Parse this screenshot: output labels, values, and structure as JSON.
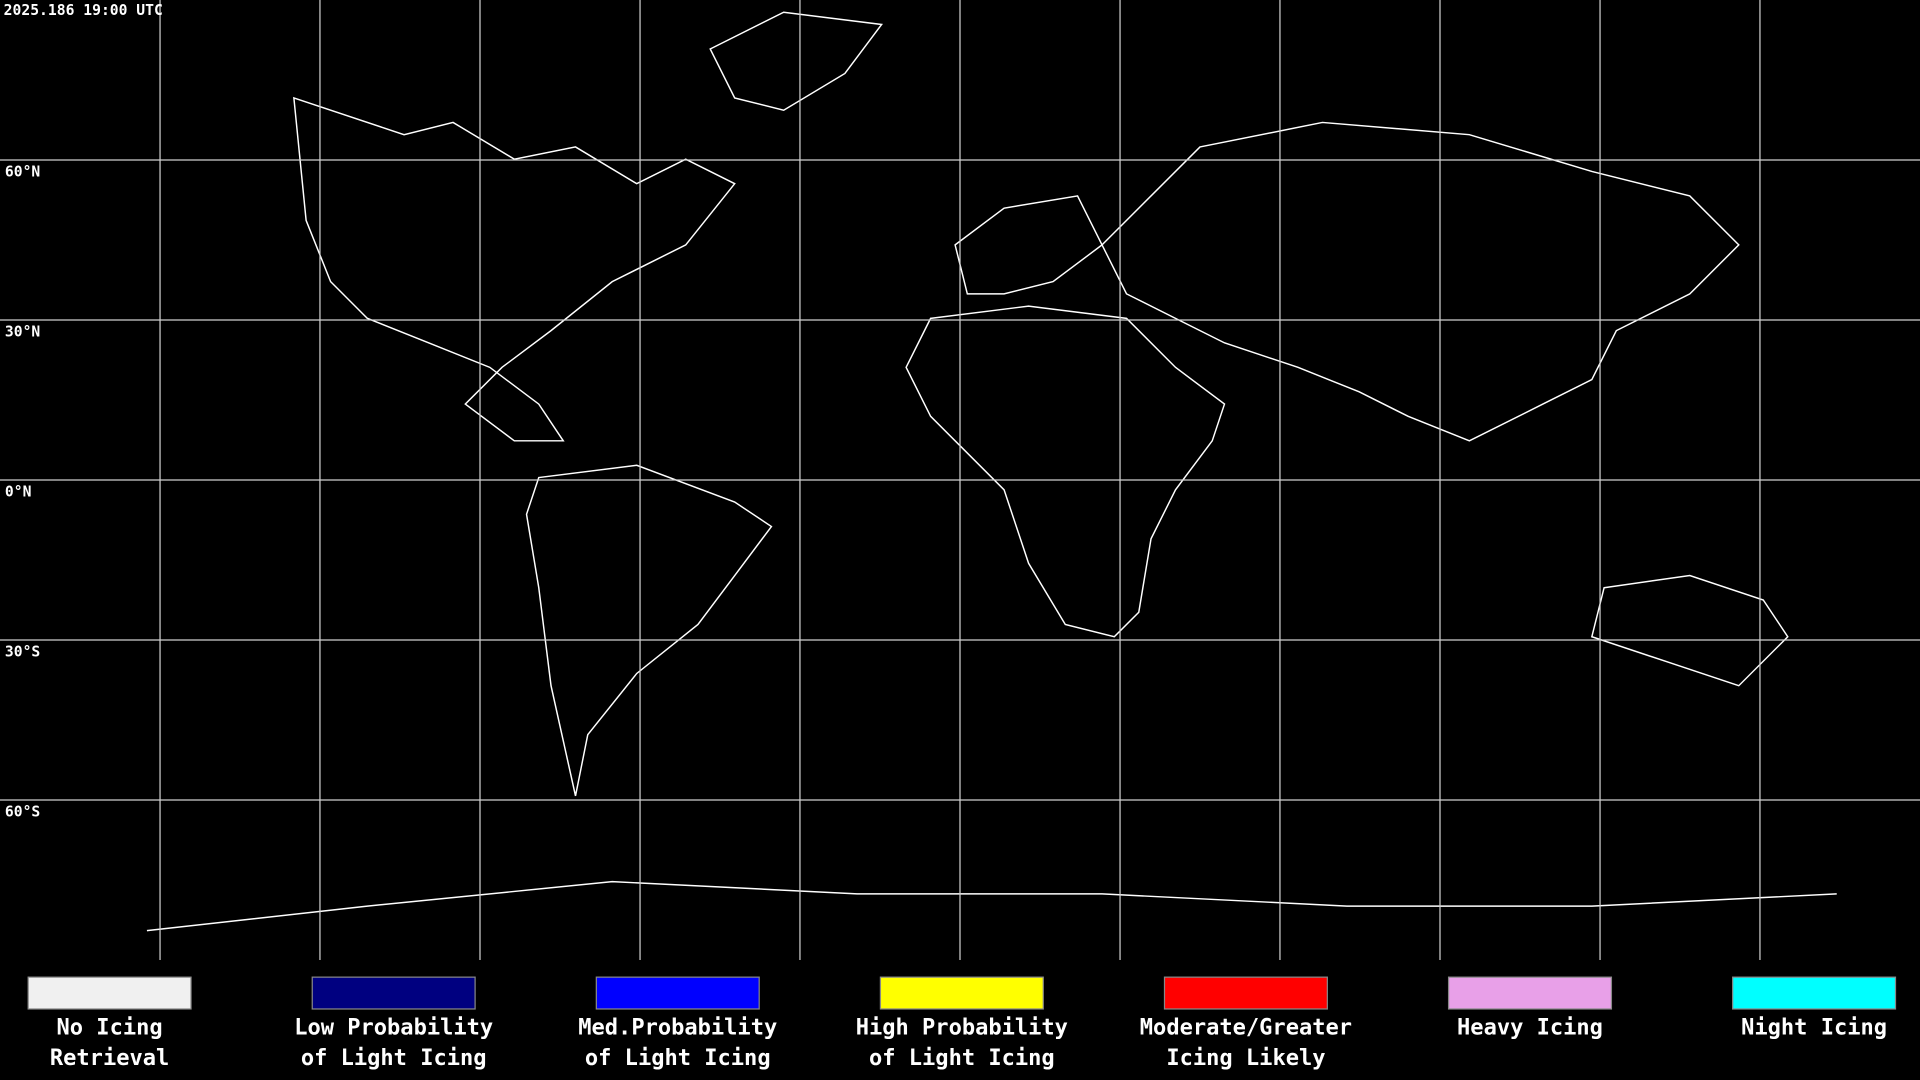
{
  "header": {
    "timestamp": "2025.186 19:00 UTC"
  },
  "map": {
    "latitude_labels": [
      "60°N",
      "30°N",
      "0°N",
      "30°S",
      "60°S"
    ]
  },
  "legend": {
    "items": [
      {
        "lines": [
          "No Icing",
          "Retrieval"
        ],
        "color": "#f0f0f0"
      },
      {
        "lines": [
          "Low Probability",
          "of Light Icing"
        ],
        "color": "#000080"
      },
      {
        "lines": [
          "Med.Probability",
          "of Light Icing"
        ],
        "color": "#0000ff"
      },
      {
        "lines": [
          "High Probability",
          "of Light Icing"
        ],
        "color": "#ffff00"
      },
      {
        "lines": [
          "Moderate/Greater",
          "Icing Likely"
        ],
        "color": "#ff0000"
      },
      {
        "lines": [
          "Heavy Icing"
        ],
        "color": "#e8a0e8"
      },
      {
        "lines": [
          "Night Icing"
        ],
        "color": "#00ffff"
      }
    ]
  }
}
